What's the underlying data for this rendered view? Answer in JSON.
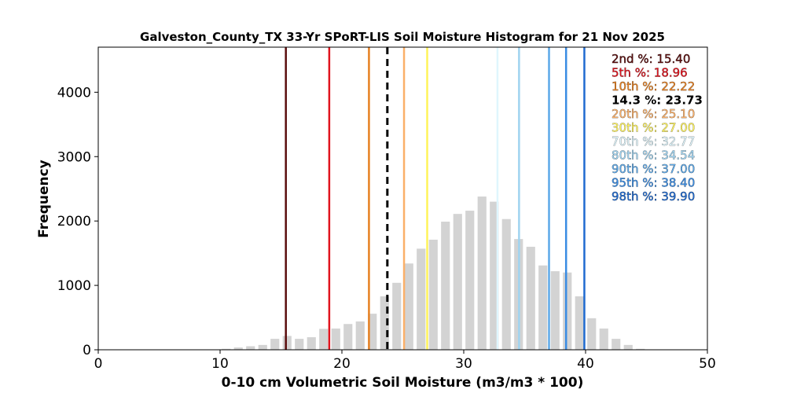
{
  "chart_data": {
    "type": "bar",
    "title": "Galveston_County_TX 33-Yr SPoRT-LIS Soil Moisture Histogram for 21 Nov 2025",
    "xlabel": "0-10 cm Volumetric Soil Moisture (m3/m3 * 100)",
    "ylabel": "Frequency",
    "xlim": [
      0,
      50
    ],
    "ylim": [
      0,
      4700
    ],
    "xticks": [
      "0",
      "10",
      "20",
      "30",
      "40",
      "50"
    ],
    "yticks": [
      "0",
      "1000",
      "2000",
      "3000",
      "4000"
    ],
    "grid": false,
    "bar_color": "#d3d3d3",
    "bin_width": 1,
    "bins": [
      {
        "x": 9,
        "value": 3
      },
      {
        "x": 10,
        "value": 15
      },
      {
        "x": 11,
        "value": 35
      },
      {
        "x": 12,
        "value": 55
      },
      {
        "x": 13,
        "value": 75
      },
      {
        "x": 14,
        "value": 170
      },
      {
        "x": 15,
        "value": 215
      },
      {
        "x": 16,
        "value": 170
      },
      {
        "x": 17,
        "value": 195
      },
      {
        "x": 18,
        "value": 325
      },
      {
        "x": 19,
        "value": 330
      },
      {
        "x": 20,
        "value": 400
      },
      {
        "x": 21,
        "value": 440
      },
      {
        "x": 22,
        "value": 560
      },
      {
        "x": 23,
        "value": 830
      },
      {
        "x": 24,
        "value": 1040
      },
      {
        "x": 25,
        "value": 1340
      },
      {
        "x": 26,
        "value": 1570
      },
      {
        "x": 27,
        "value": 1710
      },
      {
        "x": 28,
        "value": 1990
      },
      {
        "x": 29,
        "value": 2110
      },
      {
        "x": 30,
        "value": 2160
      },
      {
        "x": 31,
        "value": 2380
      },
      {
        "x": 32,
        "value": 2300
      },
      {
        "x": 33,
        "value": 2030
      },
      {
        "x": 34,
        "value": 1720
      },
      {
        "x": 35,
        "value": 1600
      },
      {
        "x": 36,
        "value": 1310
      },
      {
        "x": 37,
        "value": 1220
      },
      {
        "x": 38,
        "value": 1200
      },
      {
        "x": 39,
        "value": 830
      },
      {
        "x": 40,
        "value": 490
      },
      {
        "x": 41,
        "value": 330
      },
      {
        "x": 42,
        "value": 170
      },
      {
        "x": 43,
        "value": 75
      },
      {
        "x": 44,
        "value": 15
      }
    ],
    "percentile_lines": [
      {
        "label": "2nd %: 15.40",
        "value": 15.4,
        "color": "#5a0d0d",
        "dashed": false,
        "bold": false
      },
      {
        "label": "5th %: 18.96",
        "value": 18.96,
        "color": "#e0141e",
        "dashed": false,
        "bold": false
      },
      {
        "label": "10th %: 22.22",
        "value": 22.22,
        "color": "#e68021",
        "dashed": false,
        "bold": false
      },
      {
        "label": "14.3 %: 23.73",
        "value": 23.73,
        "color": "#000000",
        "dashed": true,
        "bold": true
      },
      {
        "label": "20th %: 25.10",
        "value": 25.1,
        "color": "#fbb068",
        "dashed": false,
        "bold": false
      },
      {
        "label": "30th %: 27.00",
        "value": 27.0,
        "color": "#fff35a",
        "dashed": false,
        "bold": false
      },
      {
        "label": "70th %: 32.77",
        "value": 32.77,
        "color": "#dff6fd",
        "dashed": false,
        "bold": false
      },
      {
        "label": "80th %: 34.54",
        "value": 34.54,
        "color": "#9fd3f0",
        "dashed": false,
        "bold": false
      },
      {
        "label": "90th %: 37.00",
        "value": 37.0,
        "color": "#5ca8e8",
        "dashed": false,
        "bold": false
      },
      {
        "label": "95th %: 38.40",
        "value": 38.4,
        "color": "#3a8ce3",
        "dashed": false,
        "bold": false
      },
      {
        "label": "98th %: 39.90",
        "value": 39.9,
        "color": "#1f6ad0",
        "dashed": false,
        "bold": false
      }
    ],
    "legend_placement": "top-right"
  }
}
